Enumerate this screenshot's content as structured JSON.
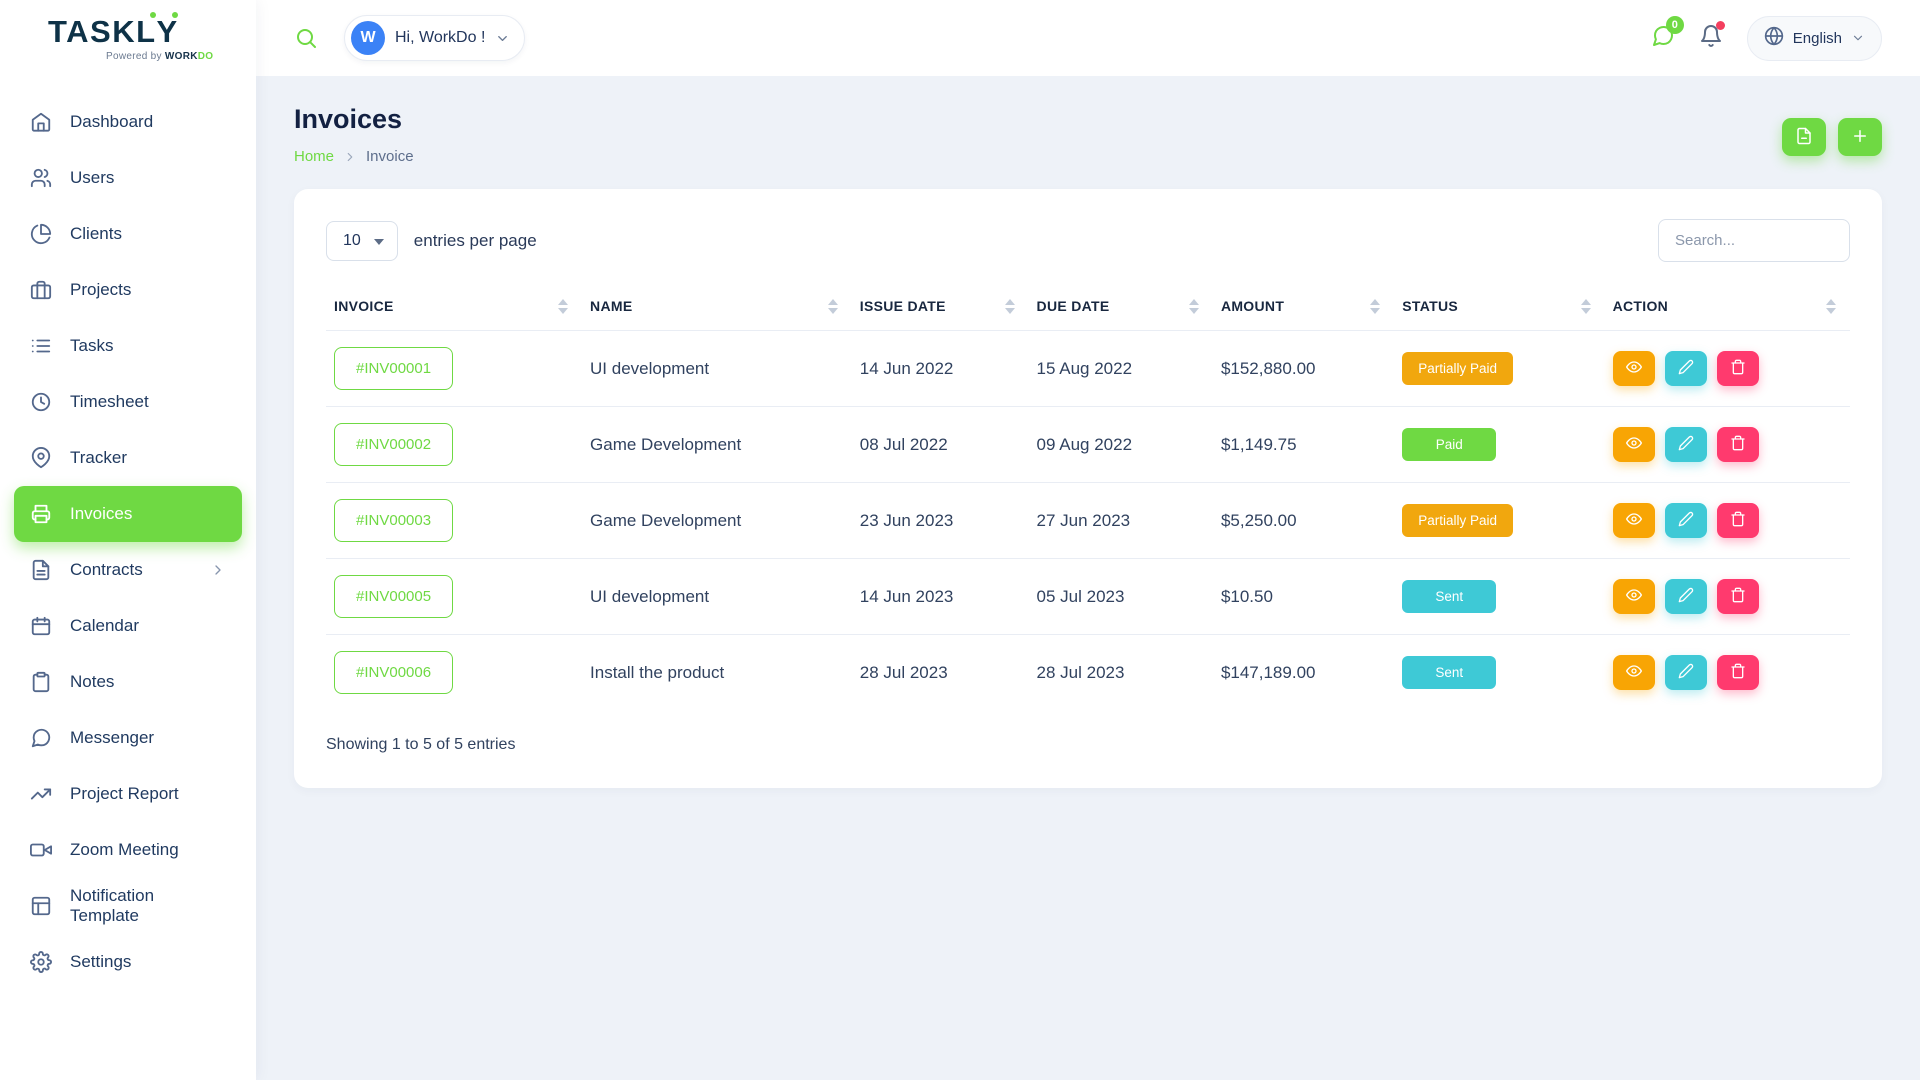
{
  "logo": {
    "part1": "TASK",
    "part2": "L",
    "part3": "Y",
    "powered_prefix": "Powered by ",
    "powered_brand_dark": "WORK",
    "powered_brand_green": "DO"
  },
  "topbar": {
    "avatar_letter": "W",
    "greeting": "Hi, WorkDo !",
    "messages_badge": "0",
    "language": "English",
    "icons": [
      "search-icon",
      "chat-icon",
      "bell-icon",
      "globe-icon",
      "chevron-down-icon"
    ]
  },
  "sidebar": {
    "items": [
      {
        "label": "Dashboard",
        "icon": "home-icon",
        "active": false
      },
      {
        "label": "Users",
        "icon": "users-icon",
        "active": false
      },
      {
        "label": "Clients",
        "icon": "clients-icon",
        "active": false
      },
      {
        "label": "Projects",
        "icon": "projects-icon",
        "active": false
      },
      {
        "label": "Tasks",
        "icon": "tasks-icon",
        "active": false
      },
      {
        "label": "Timesheet",
        "icon": "timesheet-icon",
        "active": false
      },
      {
        "label": "Tracker",
        "icon": "tracker-icon",
        "active": false
      },
      {
        "label": "Invoices",
        "icon": "invoices-icon",
        "active": true
      },
      {
        "label": "Contracts",
        "icon": "contracts-icon",
        "active": false,
        "has_submenu": true
      },
      {
        "label": "Calendar",
        "icon": "calendar-icon",
        "active": false
      },
      {
        "label": "Notes",
        "icon": "notes-icon",
        "active": false
      },
      {
        "label": "Messenger",
        "icon": "messenger-icon",
        "active": false
      },
      {
        "label": "Project Report",
        "icon": "report-icon",
        "active": false
      },
      {
        "label": "Zoom Meeting",
        "icon": "zoom-icon",
        "active": false
      },
      {
        "label": "Notification Template",
        "icon": "template-icon",
        "active": false
      },
      {
        "label": "Settings",
        "icon": "settings-icon",
        "active": false
      }
    ]
  },
  "page": {
    "title": "Invoices",
    "breadcrumb": {
      "home": "Home",
      "current": "Invoice"
    },
    "header_buttons": [
      {
        "name": "export",
        "icon": "export-icon"
      },
      {
        "name": "create",
        "icon": "plus-icon"
      }
    ]
  },
  "table": {
    "entries_value": "10",
    "entries_label": "entries per page",
    "search_placeholder": "Search...",
    "columns": [
      {
        "key": "invoice",
        "label": "INVOICE"
      },
      {
        "key": "name",
        "label": "NAME"
      },
      {
        "key": "issue_date",
        "label": "ISSUE DATE"
      },
      {
        "key": "due_date",
        "label": "DUE DATE"
      },
      {
        "key": "amount",
        "label": "AMOUNT"
      },
      {
        "key": "status",
        "label": "STATUS"
      },
      {
        "key": "action",
        "label": "ACTION"
      }
    ],
    "rows": [
      {
        "invoice": "#INV00001",
        "name": "UI development",
        "issue_date": "14 Jun 2022",
        "due_date": "15 Aug 2022",
        "amount": "$152,880.00",
        "status": "Partially Paid",
        "status_type": "warning"
      },
      {
        "invoice": "#INV00002",
        "name": "Game Development",
        "issue_date": "08 Jul 2022",
        "due_date": "09 Aug 2022",
        "amount": "$1,149.75",
        "status": "Paid",
        "status_type": "primary"
      },
      {
        "invoice": "#INV00003",
        "name": "Game Development",
        "issue_date": "23 Jun 2023",
        "due_date": "27 Jun 2023",
        "amount": "$5,250.00",
        "status": "Partially Paid",
        "status_type": "warning"
      },
      {
        "invoice": "#INV00005",
        "name": "UI development",
        "issue_date": "14 Jun 2023",
        "due_date": "05 Jul 2023",
        "amount": "$10.50",
        "status": "Sent",
        "status_type": "info"
      },
      {
        "invoice": "#INV00006",
        "name": "Install the product",
        "issue_date": "28 Jul 2023",
        "due_date": "28 Jul 2023",
        "amount": "$147,189.00",
        "status": "Sent",
        "status_type": "info"
      }
    ],
    "row_actions": [
      {
        "name": "view",
        "icon": "eye-icon"
      },
      {
        "name": "edit",
        "icon": "edit-icon"
      },
      {
        "name": "delete",
        "icon": "trash-icon"
      }
    ],
    "footer": "Showing 1 to 5 of 5 entries"
  },
  "colors": {
    "primary_green": "#6fd943",
    "status_partially_paid": "#f1a70e",
    "status_paid": "#6fd943",
    "status_sent": "#3ec9d6",
    "action_view": "#f8a504",
    "action_edit": "#3ec9d6",
    "action_delete": "#ff3a6e",
    "avatar_blue": "#3b82f6",
    "notification_dot": "#f43f5e"
  }
}
